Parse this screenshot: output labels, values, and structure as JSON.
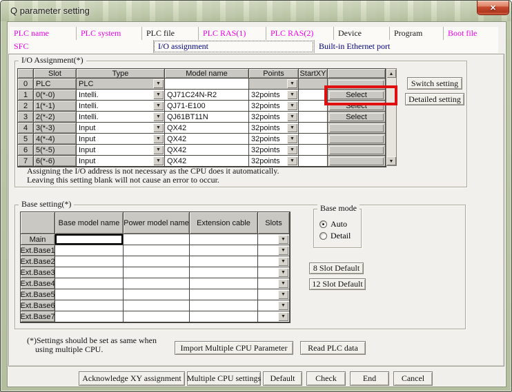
{
  "window": {
    "title": "Q parameter setting"
  },
  "icons": {
    "close": "✕",
    "dropdown": "▼",
    "scroll_up": "▲",
    "scroll_down": "▼"
  },
  "colors": {
    "magenta": "#ee00ee",
    "navy": "#000080",
    "highlight": "#e01010"
  },
  "tabs": {
    "row1": [
      {
        "label": "PLC name",
        "color": "magenta"
      },
      {
        "label": "PLC system",
        "color": "magenta"
      },
      {
        "label": "PLC file",
        "color": "black"
      },
      {
        "label": "PLC RAS(1)",
        "color": "magenta"
      },
      {
        "label": "PLC RAS(2)",
        "color": "magenta"
      },
      {
        "label": "Device",
        "color": "black"
      },
      {
        "label": "Program",
        "color": "black"
      },
      {
        "label": "Boot file",
        "color": "magenta"
      }
    ],
    "row2": [
      {
        "label": "SFC",
        "color": "magenta"
      },
      {
        "label": "I/O assignment",
        "color": "navy",
        "selected": true
      },
      {
        "label": "Built-in Ethernet port",
        "color": "navy"
      }
    ]
  },
  "io": {
    "title": "I/O Assignment(*)",
    "headers": [
      "",
      "Slot",
      "Type",
      "Model name",
      "Points",
      "StartXY",
      ""
    ],
    "rows": [
      {
        "no": "0",
        "slot": "PLC",
        "type": "PLC",
        "model": "",
        "points": "",
        "startxy": "",
        "select": "",
        "dim": true
      },
      {
        "no": "1",
        "slot": "0(*-0)",
        "type": "Intelli.",
        "model": "QJ71C24N-R2",
        "points": "32points",
        "startxy": "",
        "select": "Select"
      },
      {
        "no": "2",
        "slot": "1(*-1)",
        "type": "Intelli.",
        "model": "QJ71-E100",
        "points": "32points",
        "startxy": "",
        "select": "Select"
      },
      {
        "no": "3",
        "slot": "2(*-2)",
        "type": "Intelli.",
        "model": "QJ61BT11N",
        "points": "32points",
        "startxy": "",
        "select": "Select"
      },
      {
        "no": "4",
        "slot": "3(*-3)",
        "type": "Input",
        "model": "QX42",
        "points": "32points",
        "startxy": "",
        "select": ""
      },
      {
        "no": "5",
        "slot": "4(*-4)",
        "type": "Input",
        "model": "QX42",
        "points": "32points",
        "startxy": "",
        "select": ""
      },
      {
        "no": "6",
        "slot": "5(*-5)",
        "type": "Input",
        "model": "QX42",
        "points": "32points",
        "startxy": "",
        "select": ""
      },
      {
        "no": "7",
        "slot": "6(*-6)",
        "type": "Input",
        "model": "QX42",
        "points": "32points",
        "startxy": "",
        "select": ""
      }
    ],
    "notes": [
      "Assigning the I/O address is not necessary as the CPU does it automatically.",
      "Leaving this setting blank will not cause an error to occur."
    ],
    "buttons": {
      "switch": "Switch setting",
      "detailed": "Detailed setting"
    }
  },
  "base": {
    "title": "Base setting(*)",
    "headers": [
      "",
      "Base model name",
      "Power model name",
      "Extension cable",
      "Slots"
    ],
    "row_labels": [
      "Main",
      "Ext.Base1",
      "Ext.Base2",
      "Ext.Base3",
      "Ext.Base4",
      "Ext.Base5",
      "Ext.Base6",
      "Ext.Base7"
    ],
    "mode": {
      "title": "Base mode",
      "options": [
        {
          "label": "Auto",
          "selected": true
        },
        {
          "label": "Detail",
          "selected": false
        }
      ]
    },
    "buttons": {
      "slot8": "8 Slot Default",
      "slot12": "12 Slot Default",
      "import": "Import Multiple CPU Parameter",
      "read": "Read PLC data"
    },
    "footnote": [
      "(*)Settings should be set as same when",
      "using multiple CPU."
    ]
  },
  "bottom_buttons": [
    {
      "label": "Acknowledge XY assignment",
      "color": "black"
    },
    {
      "label": "Multiple CPU settings",
      "color": "magenta"
    },
    {
      "label": "Default",
      "color": "black"
    },
    {
      "label": "Check",
      "color": "black"
    },
    {
      "label": "End",
      "color": "black"
    },
    {
      "label": "Cancel",
      "color": "black"
    }
  ]
}
